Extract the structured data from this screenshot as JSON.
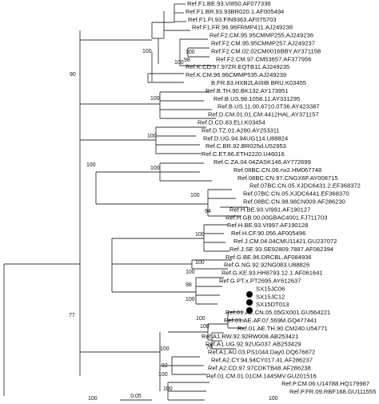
{
  "tree": {
    "leaves": [
      "Ref.F1.BE.93.VI850.AF077336",
      "Ref.F1.BR.93.93BR020.1.AF005494",
      "Ref.F1.FI.93.FIN9363.AF075703",
      "Ref.F1.FR.96.96FRMP411.AJ249238",
      "Ref.F2.CM.95.95CMMP255.AJ249236",
      "Ref.F2.CM.95.95CMMP257.AJ249237",
      "Ref.F2.CM.02.02CM0016BBY.AY371158",
      "Ref.F2.CM.97.CM53657.AF377956",
      "Ref.K.CD.97.97ZR.EQTB11.AJ249235",
      "Ref.K.CM.96.96CMMP535.AJ249239",
      "B.FR.83.HXB2LAIIIIB BRU.K03455",
      "Ref.B.TH.90.BK132.AY173951",
      "Ref.B.US.98.1058.11.AY331295",
      "Ref.B.US.11.00.6710.0T36.AY423387",
      "Ref.D.CM.01.01.CM.4412HAL.AY371157",
      "Ref.D.CD.83.ELI.K03454",
      "Ref.D.TZ.01.A280.AY253311",
      "Ref.D.UG.94.94UG114.U88824",
      "Ref.C.BR.92.BR025d.U52953",
      "Ref.C.ET.86.ETH2220.U46016",
      "Ref.C.ZA.04.04ZASK146.AY772699",
      "Ref.08BC.CN.06.nx2.HM067748",
      "Ref.08BC.CN.97.CNGX6F.AY008715",
      "Ref.07BC.CN.05.XJDC6431.2.EF368372",
      "Ref.07BC.CN.05.XJDC6441.EF368370",
      "Ref.08BC.CN.98.98CN009.AF286230",
      "Ref.H.BE.93.VI991.AF190127",
      "Ref.H.GB.00.00GBAC4001.FJ711703",
      "Ref.H.BE.93.VI997.AF190128",
      "Ref.H.CF.90.056.AF005496",
      "Ref.J.CM.04.04CMU11421.GU237072",
      "Ref.J.SE.93.SE92809.7887.AF082394",
      "Ref.G.BE.96.DRCBL.AF084936",
      "Ref.G.NG.92.92NG083.U88826",
      "Ref.G.KE.93.HH8793.12.1.AF061641",
      "Ref.G.PT.x.PT2695.AY612637",
      "SX15JC06",
      "SX15JC12",
      "SX15DT013",
      "Ref.01.AE.CN.05.05GX001.GU564221",
      "Ref.01.AE.AF.07.569M.GQ477441",
      "Ref.01.AE.TH.90.CM240.U54771",
      "Ref.A1.RW.92.92RW008.AB253421",
      "Ref.A1.UG.92.92UG037.AB253429",
      "Ref.A1.AU.03.PS1044.Day0.DQ676872",
      "Ref.A2.CY.94.94CY017.41.AF286237",
      "Ref.A2.CD.97.97CDKTB48.AF286238",
      "Ref.01.CM.01.01CM.1445MV.GU201516",
      "Ref.P.CM.06.U14788.HQ179987",
      "Ref.P.FR.09.RBF168.GU111555"
    ],
    "bootstrap": [
      "100",
      "100",
      "98",
      "100",
      "90",
      "100",
      "100",
      "100",
      "100",
      "100",
      "94",
      "100",
      "100",
      "100",
      "98",
      "100",
      "77",
      "100",
      "100",
      "78",
      "100",
      "92",
      "100",
      "100",
      "100",
      "100"
    ],
    "scale_bar_label": "0.05"
  }
}
